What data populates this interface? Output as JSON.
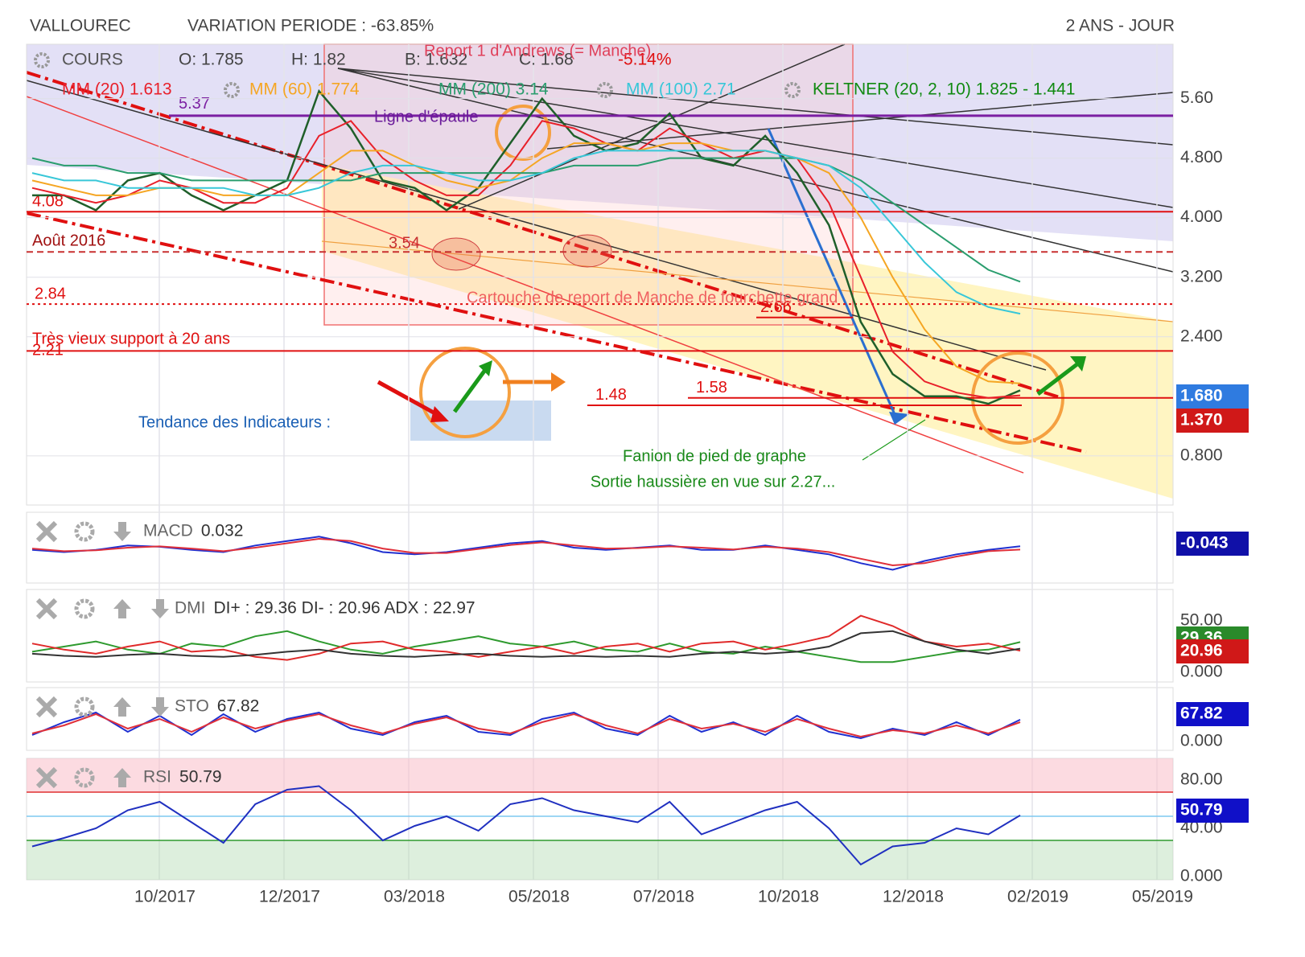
{
  "header": {
    "symbol": "VALLOUREC",
    "variation": "VARIATION PERIODE : -63.85%",
    "period": "2 ANS - JOUR"
  },
  "x_labels": [
    "10/2017",
    "12/2017",
    "03/2018",
    "05/2018",
    "07/2018",
    "10/2018",
    "12/2018",
    "02/2019",
    "05/2019"
  ],
  "chart_data": [
    {
      "type": "line",
      "ohlc": [
        "O: 1.785",
        "H: 1.82",
        "B: 1.632",
        "C: 1.68"
      ],
      "change": "-5.14%",
      "keltner": "KELTNER (20, 2, 10) 1.825 - 1.441",
      "ylim": [
        0.14,
        6.33
      ],
      "yticks": [
        {
          "value": 0.8,
          "label": "0.800"
        },
        {
          "value": 2.4,
          "label": "2.400"
        },
        {
          "value": 3.2,
          "label": "3.200"
        },
        {
          "value": 4.0,
          "label": "4.000"
        },
        {
          "value": 4.8,
          "label": "4.800"
        },
        {
          "value": 5.6,
          "label": "5.60"
        }
      ],
      "grid": true,
      "series": [
        {
          "name": "COURS",
          "color": "#1f5f2a",
          "values": [
            4.3,
            4.3,
            4.1,
            4.5,
            4.6,
            4.3,
            4.1,
            4.3,
            4.5,
            5.7,
            5.2,
            4.5,
            4.4,
            4.1,
            4.4,
            5.0,
            5.6,
            5.1,
            4.9,
            5.0,
            5.4,
            4.8,
            4.7,
            5.1,
            4.6,
            3.9,
            2.6,
            1.9,
            1.6,
            1.6,
            1.5,
            1.68
          ]
        },
        {
          "name": "MM (20) 1.613",
          "color": "#e8202a",
          "values": [
            4.4,
            4.3,
            4.2,
            4.3,
            4.5,
            4.4,
            4.2,
            4.2,
            4.4,
            5.1,
            5.3,
            4.8,
            4.5,
            4.3,
            4.3,
            4.7,
            5.3,
            5.2,
            5.0,
            4.9,
            5.2,
            5.0,
            4.8,
            4.9,
            4.8,
            4.2,
            3.2,
            2.2,
            1.8,
            1.65,
            1.58,
            1.613
          ]
        },
        {
          "name": "MM (60) 1.774",
          "color": "#f5a623",
          "values": [
            4.5,
            4.4,
            4.3,
            4.3,
            4.4,
            4.4,
            4.3,
            4.3,
            4.3,
            4.6,
            4.9,
            4.9,
            4.7,
            4.5,
            4.4,
            4.5,
            4.8,
            5.0,
            5.0,
            4.9,
            5.0,
            5.0,
            4.9,
            4.9,
            4.8,
            4.6,
            4.0,
            3.2,
            2.5,
            2.0,
            1.8,
            1.774
          ]
        },
        {
          "name": "MM (200) 3.14",
          "color": "#2a9d6e",
          "values": [
            4.8,
            4.7,
            4.7,
            4.6,
            4.6,
            4.5,
            4.5,
            4.5,
            4.5,
            4.5,
            4.5,
            4.6,
            4.6,
            4.6,
            4.6,
            4.6,
            4.6,
            4.7,
            4.7,
            4.7,
            4.8,
            4.8,
            4.8,
            4.8,
            4.8,
            4.7,
            4.5,
            4.2,
            3.9,
            3.6,
            3.3,
            3.14
          ]
        },
        {
          "name": "MM (100) 2.71",
          "color": "#38c7d8",
          "values": [
            4.6,
            4.5,
            4.5,
            4.4,
            4.4,
            4.4,
            4.4,
            4.3,
            4.3,
            4.4,
            4.6,
            4.7,
            4.7,
            4.6,
            4.5,
            4.5,
            4.6,
            4.8,
            4.9,
            4.9,
            4.9,
            4.9,
            4.9,
            4.9,
            4.8,
            4.7,
            4.4,
            3.9,
            3.4,
            3.0,
            2.8,
            2.71
          ]
        }
      ],
      "levels": [
        {
          "value": 5.37,
          "color": "#7b1fa2"
        },
        {
          "value": 4.08,
          "color": "#e01010"
        },
        {
          "value": 3.54,
          "color": "#c83030"
        },
        {
          "value": 2.84,
          "color": "#e01010"
        },
        {
          "value": 2.66,
          "color": "#e01010"
        },
        {
          "value": 2.21,
          "color": "#e01010"
        },
        {
          "value": 1.58,
          "color": "#e01010"
        },
        {
          "value": 1.48,
          "color": "#e01010"
        }
      ],
      "last_values": [
        {
          "text": "1.680",
          "color": "#2f7be0"
        },
        {
          "text": "1.370",
          "color": "#d01818"
        }
      ],
      "annotations": [
        "Report 1 d'Andrews (= Manche)",
        "Ligne d'épaule",
        "Août 2016",
        "Très vieux support à 20 ans",
        "Cartouche de report de Manche de fourchette grand",
        "Tendance des Indicateurs :",
        "Fanion de pied de graphe",
        "Sortie haussière en vue sur 2.27..."
      ]
    },
    {
      "type": "line",
      "title": "MACD",
      "reading": "0.032",
      "ylim": [
        -0.8,
        0.8
      ],
      "series": [
        {
          "color": "#2030d0",
          "values": [
            -0.05,
            -0.1,
            -0.05,
            0.05,
            0.02,
            -0.05,
            -0.1,
            0.05,
            0.15,
            0.25,
            0.1,
            -0.1,
            -0.15,
            -0.1,
            0.0,
            0.1,
            0.15,
            0.0,
            -0.05,
            0.0,
            0.05,
            -0.05,
            -0.05,
            0.05,
            -0.05,
            -0.15,
            -0.35,
            -0.5,
            -0.3,
            -0.15,
            -0.05,
            0.032
          ]
        },
        {
          "color": "#e0303a",
          "values": [
            -0.02,
            -0.08,
            -0.06,
            0.0,
            0.03,
            -0.02,
            -0.08,
            0.0,
            0.1,
            0.2,
            0.15,
            -0.02,
            -0.12,
            -0.12,
            -0.03,
            0.06,
            0.12,
            0.05,
            -0.02,
            -0.01,
            0.03,
            0.0,
            -0.04,
            0.02,
            -0.02,
            -0.1,
            -0.25,
            -0.4,
            -0.35,
            -0.2,
            -0.08,
            -0.043
          ]
        }
      ],
      "last_values": [
        {
          "text": "-0.043",
          "color": "#1010a8"
        }
      ]
    },
    {
      "type": "line",
      "title": "DMI",
      "reading": "DI+ : 29.36 DI- : 20.96 ADX : 22.97",
      "ylim": [
        -9.4,
        80.5
      ],
      "yticks": [
        {
          "value": 0,
          "label": "0.000"
        },
        {
          "value": 50,
          "label": "50.00"
        }
      ],
      "series": [
        {
          "color": "#2e9a2e",
          "values": [
            20,
            25,
            30,
            22,
            18,
            28,
            25,
            35,
            40,
            30,
            22,
            18,
            25,
            30,
            35,
            28,
            25,
            30,
            22,
            20,
            28,
            20,
            18,
            25,
            20,
            15,
            10,
            10,
            15,
            20,
            22,
            29.36
          ]
        },
        {
          "color": "#e02a2a",
          "values": [
            28,
            22,
            18,
            25,
            30,
            20,
            22,
            15,
            12,
            18,
            28,
            30,
            22,
            20,
            15,
            20,
            25,
            18,
            25,
            28,
            20,
            28,
            30,
            22,
            28,
            35,
            55,
            45,
            30,
            25,
            28,
            20.96
          ]
        },
        {
          "color": "#333333",
          "values": [
            18,
            16,
            15,
            17,
            18,
            16,
            15,
            17,
            20,
            22,
            18,
            16,
            15,
            17,
            18,
            16,
            15,
            16,
            15,
            16,
            15,
            18,
            20,
            18,
            20,
            25,
            38,
            40,
            30,
            22,
            18,
            22.97
          ]
        }
      ],
      "last_values": [
        {
          "text": "29.36",
          "color": "#2a8a2a"
        },
        {
          "text": "20.96",
          "color": "#d01818"
        }
      ]
    },
    {
      "type": "line",
      "title": "STO",
      "reading": "67.82",
      "ylim": [
        -27.5,
        167.5
      ],
      "yticks": [
        {
          "value": 0,
          "label": "0.000"
        }
      ],
      "series": [
        {
          "color": "#2030d0",
          "values": [
            20,
            60,
            90,
            30,
            80,
            20,
            85,
            30,
            70,
            90,
            40,
            20,
            60,
            80,
            30,
            20,
            70,
            90,
            40,
            20,
            80,
            30,
            60,
            20,
            80,
            30,
            10,
            40,
            20,
            60,
            20,
            67.82
          ]
        },
        {
          "color": "#e0303a",
          "values": [
            25,
            50,
            85,
            40,
            70,
            30,
            75,
            40,
            65,
            85,
            50,
            25,
            55,
            75,
            40,
            25,
            60,
            85,
            50,
            25,
            70,
            40,
            55,
            30,
            70,
            40,
            15,
            35,
            25,
            50,
            25,
            60
          ]
        }
      ],
      "last_values": [
        {
          "text": "67.82",
          "color": "#1010c8"
        }
      ]
    },
    {
      "type": "line",
      "title": "RSI",
      "reading": "50.79",
      "ylim": [
        -2.7,
        98
      ],
      "yticks": [
        {
          "value": 0,
          "label": "0.000"
        },
        {
          "value": 40,
          "label": "40.00"
        },
        {
          "value": 80,
          "label": "80.00"
        }
      ],
      "levels": [
        {
          "value": 70,
          "color": "#e03030"
        },
        {
          "value": 50,
          "color": "#7fc8f0"
        },
        {
          "value": 30,
          "color": "#2e9a2e"
        }
      ],
      "series": [
        {
          "color": "#2030c0",
          "values": [
            25,
            32,
            40,
            55,
            62,
            45,
            28,
            60,
            72,
            75,
            55,
            30,
            42,
            50,
            38,
            60,
            65,
            55,
            50,
            45,
            62,
            35,
            45,
            55,
            62,
            40,
            10,
            25,
            28,
            40,
            35,
            50.79
          ]
        }
      ],
      "last_values": [
        {
          "text": "50.79",
          "color": "#1010c8"
        }
      ]
    }
  ]
}
